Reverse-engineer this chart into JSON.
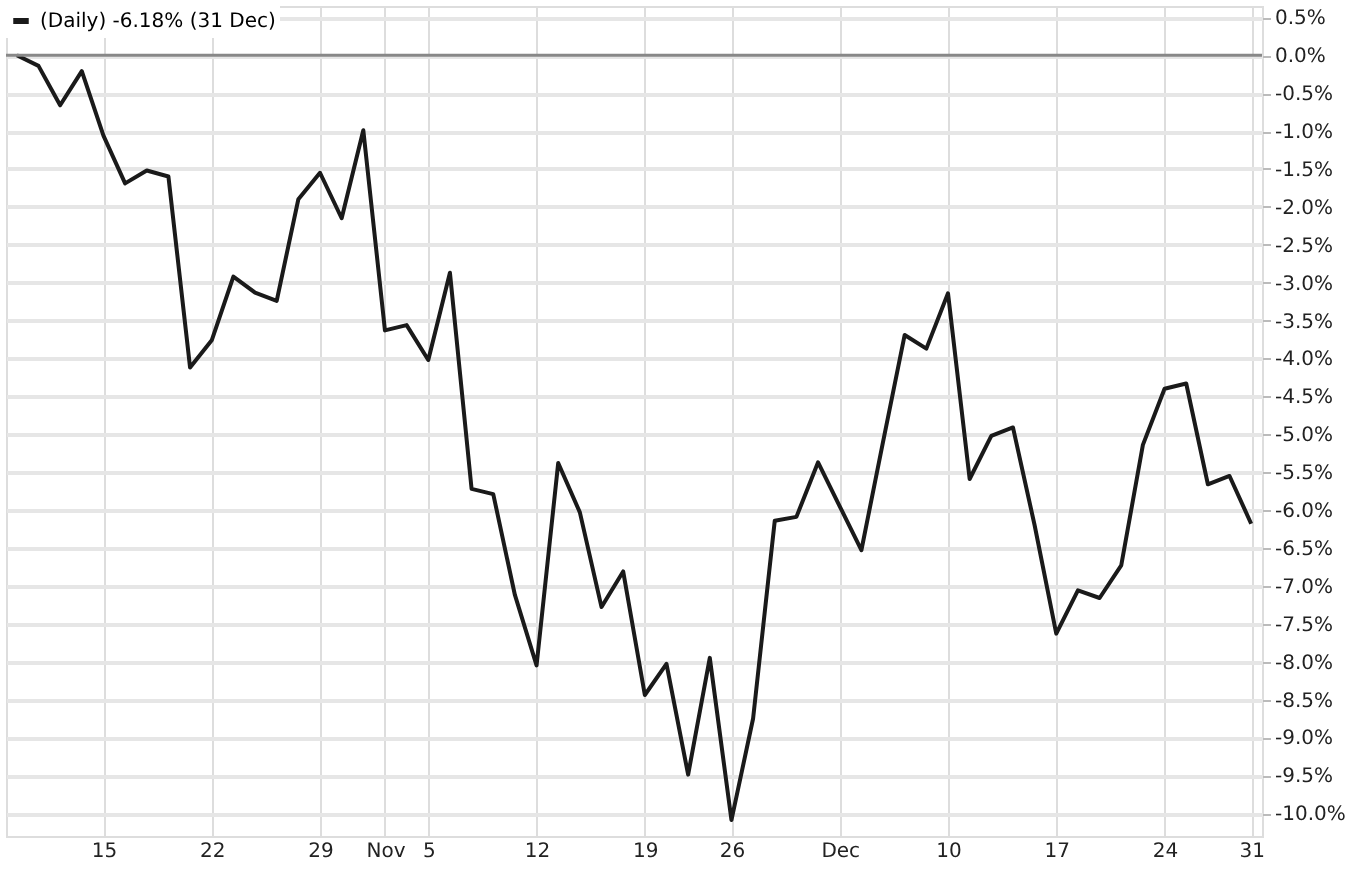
{
  "chart_data": {
    "type": "line",
    "categories": [
      null,
      null,
      null,
      null,
      "15",
      null,
      null,
      null,
      null,
      "22",
      null,
      null,
      null,
      null,
      "29",
      null,
      null,
      "Nov",
      null,
      "5",
      null,
      null,
      null,
      null,
      "12",
      null,
      null,
      null,
      null,
      "19",
      null,
      null,
      null,
      "26",
      null,
      null,
      null,
      null,
      "Dec",
      null,
      null,
      null,
      null,
      "10",
      null,
      null,
      null,
      null,
      "17",
      null,
      null,
      null,
      null,
      "24",
      null,
      null,
      null,
      "31"
    ],
    "series": [
      {
        "name": "(Daily) -6.18% (31 Dec)",
        "color": "#1a1a1a",
        "values": [
          0.0,
          -0.14,
          -0.66,
          -0.21,
          -1.06,
          -1.69,
          -1.52,
          -1.6,
          -4.12,
          -3.76,
          -2.92,
          -3.13,
          -3.24,
          -1.9,
          -1.55,
          -2.15,
          -0.99,
          -3.63,
          -3.56,
          -4.02,
          -2.87,
          -5.72,
          -5.79,
          -7.12,
          -8.05,
          -5.38,
          -6.03,
          -7.28,
          -6.81,
          -8.44,
          -8.03,
          -9.49,
          -7.95,
          -10.09,
          -8.75,
          -6.14,
          -6.09,
          -5.37,
          -5.95,
          -6.53,
          -5.1,
          -3.69,
          -3.87,
          -3.14,
          -5.59,
          -5.02,
          -4.91,
          -6.2,
          -7.63,
          -7.06,
          -7.16,
          -6.73,
          -5.14,
          -4.4,
          -4.33,
          -5.66,
          -5.55,
          -6.18
        ]
      }
    ],
    "ylim": [
      -10.3,
      0.65
    ],
    "yticks": [
      {
        "value": 0.5,
        "label": "0.5%"
      },
      {
        "value": 0.0,
        "label": "0.0%"
      },
      {
        "value": -0.5,
        "label": "-0.5%"
      },
      {
        "value": -1.0,
        "label": "-1.0%"
      },
      {
        "value": -1.5,
        "label": "-1.5%"
      },
      {
        "value": -2.0,
        "label": "-2.0%"
      },
      {
        "value": -2.5,
        "label": "-2.5%"
      },
      {
        "value": -3.0,
        "label": "-3.0%"
      },
      {
        "value": -3.5,
        "label": "-3.5%"
      },
      {
        "value": -4.0,
        "label": "-4.0%"
      },
      {
        "value": -4.5,
        "label": "-4.5%"
      },
      {
        "value": -5.0,
        "label": "-5.0%"
      },
      {
        "value": -5.5,
        "label": "-5.5%"
      },
      {
        "value": -6.0,
        "label": "-6.0%"
      },
      {
        "value": -6.5,
        "label": "-6.5%"
      },
      {
        "value": -7.0,
        "label": "-7.0%"
      },
      {
        "value": -7.5,
        "label": "-7.5%"
      },
      {
        "value": -8.0,
        "label": "-8.0%"
      },
      {
        "value": -8.5,
        "label": "-8.5%"
      },
      {
        "value": -9.0,
        "label": "-9.0%"
      },
      {
        "value": -9.5,
        "label": "-9.5%"
      },
      {
        "value": -10.0,
        "label": "-10.0%"
      }
    ],
    "ref_lines": [
      {
        "axis": "y",
        "value": 0.0,
        "color": "#888888"
      }
    ],
    "grid": true,
    "legend": "top left",
    "marker": "none",
    "line_style": "solid"
  }
}
